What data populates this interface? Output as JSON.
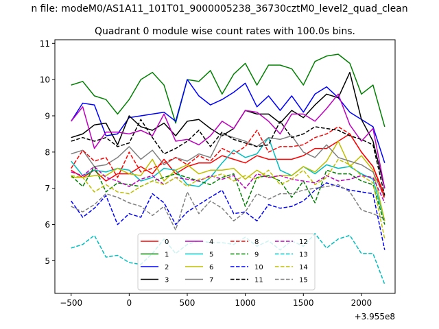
{
  "suptitle": "n file: modeM0/AS1A11_101T01_9000005238_36730cztM0_level2_quad_clean",
  "title": "Quadrant 0 module wise count rates with 100.0s bins.",
  "offset_label": "+3.955e8",
  "chart_data": {
    "type": "line",
    "title": "Quadrant 0 module wise count rates with 100.0s bins.",
    "x_offset": 395500000,
    "xlim": [
      -640,
      2290
    ],
    "ylim": [
      4.1,
      11.1
    ],
    "x_ticks": [
      -500,
      0,
      500,
      1000,
      1500,
      2000
    ],
    "x_tick_labels": [
      "−500",
      "0",
      "500",
      "1000",
      "1500",
      "2000"
    ],
    "y_ticks": [
      5,
      6,
      7,
      8,
      9,
      10,
      11
    ],
    "y_tick_labels": [
      "5",
      "6",
      "7",
      "8",
      "9",
      "10",
      "11"
    ],
    "legend_position": "lower-center",
    "x": [
      -500,
      -400,
      -300,
      -200,
      -100,
      0,
      100,
      200,
      300,
      400,
      500,
      600,
      700,
      800,
      900,
      1000,
      1100,
      1200,
      1300,
      1400,
      1500,
      1600,
      1700,
      1800,
      1900,
      2000,
      2100,
      2200
    ],
    "series": [
      {
        "name": "0",
        "color": "#ff0000",
        "dash": "solid",
        "values": [
          7.5,
          7.3,
          7.5,
          7.2,
          7.4,
          7.4,
          7.6,
          7.4,
          7.8,
          7.4,
          7.6,
          7.7,
          7.7,
          7.9,
          7.8,
          7.7,
          7.9,
          7.8,
          7.8,
          7.8,
          7.9,
          8.1,
          8.1,
          8.3,
          8.5,
          8.0,
          7.6,
          6.8
        ]
      },
      {
        "name": "1",
        "color": "#008000",
        "dash": "solid",
        "values": [
          9.85,
          9.95,
          9.55,
          9.45,
          9.05,
          9.45,
          10.0,
          10.2,
          9.85,
          8.8,
          10.0,
          9.95,
          10.25,
          9.6,
          10.15,
          10.45,
          9.85,
          10.4,
          10.4,
          10.3,
          9.85,
          10.5,
          10.65,
          10.7,
          10.45,
          9.6,
          9.85,
          8.7
        ]
      },
      {
        "name": "2",
        "color": "#0000ff",
        "dash": "solid",
        "values": [
          8.85,
          9.35,
          9.3,
          8.45,
          8.5,
          8.95,
          9.0,
          9.05,
          9.1,
          8.85,
          10.0,
          9.55,
          9.3,
          9.45,
          9.65,
          9.9,
          9.25,
          9.55,
          9.15,
          9.55,
          9.1,
          9.6,
          9.8,
          9.5,
          9.1,
          8.9,
          8.7,
          7.7
        ]
      },
      {
        "name": "3",
        "color": "#000000",
        "dash": "solid",
        "values": [
          8.4,
          8.5,
          8.75,
          8.8,
          8.2,
          9.0,
          8.7,
          8.6,
          8.8,
          8.45,
          8.85,
          8.9,
          8.65,
          8.45,
          8.65,
          9.15,
          9.05,
          9.05,
          8.8,
          9.15,
          8.95,
          9.3,
          9.6,
          9.5,
          10.2,
          8.9,
          8.3,
          7.0
        ]
      },
      {
        "name": "4",
        "color": "#bf00bf",
        "dash": "solid",
        "values": [
          8.85,
          9.25,
          8.1,
          8.55,
          8.55,
          8.5,
          8.6,
          8.45,
          9.05,
          8.3,
          8.35,
          8.2,
          8.45,
          8.85,
          8.65,
          9.15,
          9.1,
          8.85,
          8.5,
          9.05,
          9.05,
          8.85,
          9.2,
          9.6,
          8.75,
          8.3,
          8.65,
          7.0
        ]
      },
      {
        "name": "5",
        "color": "#00bfbf",
        "dash": "solid",
        "values": [
          7.75,
          7.35,
          7.5,
          7.45,
          7.55,
          7.5,
          7.2,
          7.3,
          7.55,
          7.5,
          7.1,
          7.05,
          7.3,
          7.7,
          8.05,
          7.85,
          7.95,
          8.4,
          7.5,
          7.35,
          7.6,
          7.4,
          7.65,
          7.55,
          7.6,
          7.4,
          7.25,
          6.1
        ]
      },
      {
        "name": "6",
        "color": "#bfbf00",
        "dash": "solid",
        "values": [
          7.3,
          7.3,
          7.35,
          7.35,
          7.55,
          7.4,
          7.35,
          7.8,
          7.2,
          7.5,
          7.65,
          7.4,
          7.5,
          7.5,
          7.55,
          7.25,
          7.5,
          7.3,
          7.35,
          7.35,
          7.6,
          7.45,
          7.75,
          8.3,
          7.6,
          7.9,
          7.5,
          6.1
        ]
      },
      {
        "name": "7",
        "color": "#808080",
        "dash": "solid",
        "values": [
          7.95,
          8.05,
          7.6,
          7.65,
          7.85,
          8.15,
          7.8,
          8.05,
          7.65,
          7.85,
          7.75,
          7.95,
          7.85,
          8.5,
          8.4,
          8.3,
          8.15,
          8.4,
          8.35,
          8.45,
          8.0,
          7.85,
          8.2,
          7.85,
          7.75,
          7.65,
          7.45,
          6.75
        ]
      },
      {
        "name": "8",
        "color": "#ff0000",
        "dash": "dashed",
        "values": [
          7.55,
          8.05,
          7.75,
          7.85,
          7.3,
          8.0,
          7.45,
          7.55,
          7.7,
          7.85,
          7.65,
          7.9,
          7.75,
          8.1,
          7.95,
          8.15,
          8.6,
          8.0,
          8.15,
          8.15,
          8.2,
          8.4,
          8.5,
          8.7,
          8.5,
          8.0,
          7.6,
          6.7
        ]
      },
      {
        "name": "9",
        "color": "#008000",
        "dash": "dashed",
        "values": [
          7.35,
          7.05,
          7.6,
          6.9,
          7.15,
          7.1,
          7.05,
          7.2,
          7.3,
          7.4,
          7.3,
          7.2,
          7.1,
          7.3,
          7.4,
          6.5,
          7.3,
          7.35,
          7.2,
          6.75,
          7.2,
          6.6,
          7.5,
          7.4,
          7.4,
          7.2,
          7.1,
          6.0
        ]
      },
      {
        "name": "10",
        "color": "#0000ff",
        "dash": "dashed",
        "values": [
          6.65,
          6.2,
          6.45,
          6.8,
          6.0,
          6.3,
          6.2,
          6.85,
          6.6,
          6.0,
          6.35,
          6.55,
          6.75,
          6.95,
          6.3,
          6.35,
          6.1,
          6.55,
          6.45,
          6.5,
          6.65,
          6.95,
          7.15,
          7.05,
          6.95,
          6.9,
          6.85,
          5.3
        ]
      },
      {
        "name": "11",
        "color": "#000000",
        "dash": "dashed",
        "values": [
          8.3,
          8.4,
          8.3,
          8.4,
          8.15,
          8.25,
          8.9,
          8.4,
          7.95,
          8.1,
          8.3,
          8.6,
          8.15,
          8.55,
          8.35,
          8.25,
          8.15,
          8.2,
          8.85,
          8.4,
          8.5,
          8.7,
          8.65,
          8.6,
          8.45,
          8.35,
          8.2,
          6.8
        ]
      },
      {
        "name": "12",
        "color": "#bf00bf",
        "dash": "dashed",
        "values": [
          7.45,
          7.35,
          7.6,
          7.3,
          7.2,
          7.05,
          7.25,
          7.35,
          7.1,
          7.3,
          7.25,
          7.2,
          7.35,
          7.25,
          7.35,
          7.0,
          7.4,
          7.3,
          7.35,
          7.25,
          7.2,
          7.15,
          7.35,
          7.2,
          7.25,
          7.35,
          7.3,
          6.6
        ]
      },
      {
        "name": "13",
        "color": "#00bfbf",
        "dash": "dashed",
        "values": [
          5.35,
          5.45,
          5.7,
          5.1,
          5.15,
          4.95,
          4.9,
          5.2,
          5.6,
          5.2,
          5.45,
          5.55,
          5.5,
          5.5,
          5.45,
          5.65,
          5.4,
          5.55,
          5.3,
          5.55,
          5.4,
          5.75,
          5.35,
          5.6,
          5.7,
          5.2,
          5.2,
          4.35
        ]
      },
      {
        "name": "14",
        "color": "#bfbf00",
        "dash": "dashed",
        "values": [
          7.35,
          7.3,
          6.9,
          7.1,
          6.9,
          6.85,
          7.05,
          7.2,
          7.1,
          7.3,
          7.05,
          7.25,
          7.3,
          7.4,
          7.2,
          7.35,
          7.25,
          7.5,
          7.1,
          7.25,
          7.5,
          7.1,
          7.3,
          7.8,
          7.65,
          7.35,
          7.15,
          5.6
        ]
      },
      {
        "name": "15",
        "color": "#808080",
        "dash": "dashed",
        "values": [
          6.5,
          6.35,
          6.55,
          6.85,
          6.75,
          6.6,
          6.5,
          6.25,
          6.5,
          5.85,
          6.9,
          6.3,
          6.65,
          6.45,
          6.1,
          6.35,
          6.85,
          6.7,
          6.85,
          6.85,
          6.95,
          7.0,
          7.05,
          7.1,
          6.9,
          6.4,
          6.3,
          6.15
        ]
      }
    ]
  }
}
